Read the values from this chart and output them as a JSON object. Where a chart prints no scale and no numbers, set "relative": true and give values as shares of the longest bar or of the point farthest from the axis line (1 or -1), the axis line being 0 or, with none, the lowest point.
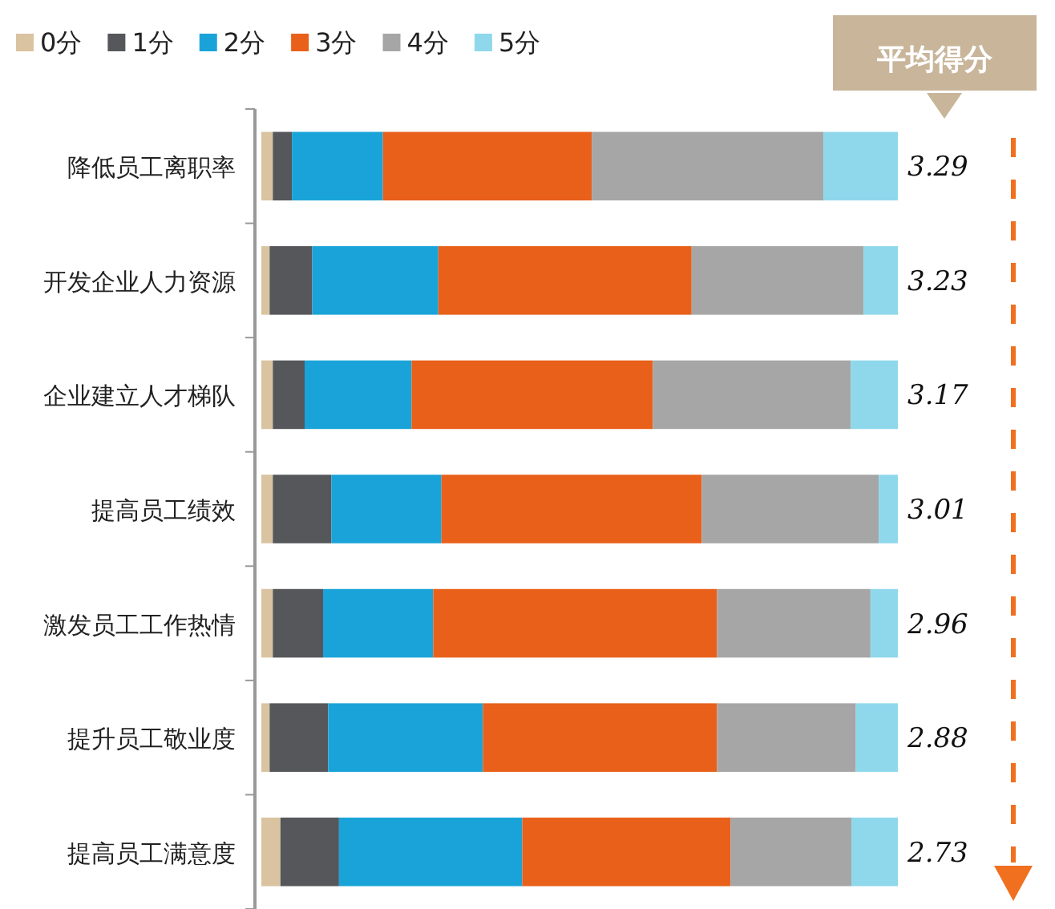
{
  "chart_data": {
    "type": "bar",
    "orientation": "horizontal",
    "stacked": true,
    "relative": true,
    "legend": "top",
    "tick_labels": "y",
    "categories": [
      "降低员工离职率",
      "开发企业人力资源",
      "企业建立人才梯队",
      "提高员工绩效",
      "激发员工工作热情",
      "提升员工敬业度",
      "提高员工满意度"
    ],
    "series": [
      {
        "name": "0分",
        "color": "#d9c3a0",
        "values": [
          0.018,
          0.013,
          0.018,
          0.018,
          0.018,
          0.013,
          0.03
        ]
      },
      {
        "name": "1分",
        "color": "#55575b",
        "values": [
          0.03,
          0.067,
          0.05,
          0.092,
          0.079,
          0.092,
          0.092
        ]
      },
      {
        "name": "2分",
        "color": "#1aa3d8",
        "values": [
          0.143,
          0.198,
          0.168,
          0.173,
          0.173,
          0.243,
          0.288
        ]
      },
      {
        "name": "3分",
        "color": "#e8601a",
        "values": [
          0.328,
          0.398,
          0.379,
          0.409,
          0.446,
          0.368,
          0.327
        ]
      },
      {
        "name": "4分",
        "color": "#a6a6a6",
        "values": [
          0.364,
          0.27,
          0.311,
          0.278,
          0.241,
          0.218,
          0.19
        ]
      },
      {
        "name": "5分",
        "color": "#8fd8ec",
        "values": [
          0.117,
          0.054,
          0.074,
          0.03,
          0.043,
          0.066,
          0.073
        ]
      }
    ],
    "annotations": [
      "平均得分",
      "3.29",
      "3.23",
      "3.17",
      "3.01",
      "2.96",
      "2.88",
      "2.73"
    ]
  }
}
